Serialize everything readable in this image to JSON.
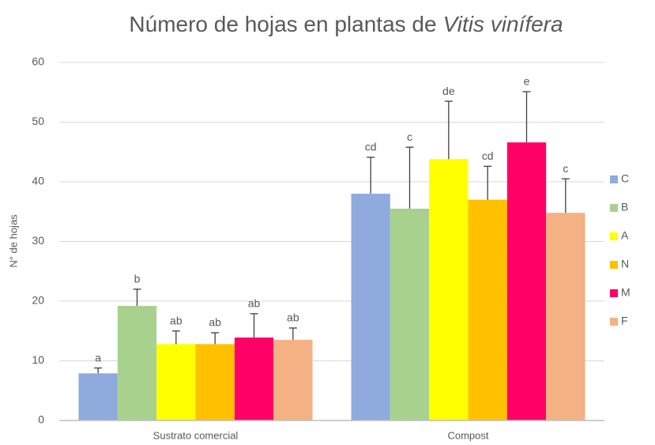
{
  "chart_data": {
    "type": "bar",
    "title": "Número de hojas en plantas de",
    "title_species": "Vitis vinífera",
    "y_label": "N° de hojas",
    "categories": [
      "Sustrato comercial",
      "Compost"
    ],
    "ylim": [
      0,
      60
    ],
    "yticks": [
      0,
      10,
      20,
      30,
      40,
      50,
      60
    ],
    "grid": true,
    "legend": "right",
    "series": [
      {
        "name": "C",
        "color": "#8faadc",
        "values": [
          7.9,
          38.0
        ],
        "errors": [
          0.9,
          6.1
        ],
        "letters": [
          "a",
          "cd"
        ]
      },
      {
        "name": "B",
        "color": "#a9d18e",
        "values": [
          19.2,
          35.5
        ],
        "errors": [
          2.8,
          10.3
        ],
        "letters": [
          "b",
          "c"
        ]
      },
      {
        "name": "A",
        "color": "#ffff00",
        "values": [
          12.8,
          43.8
        ],
        "errors": [
          2.2,
          9.7
        ],
        "letters": [
          "ab",
          "de"
        ]
      },
      {
        "name": "N",
        "color": "#ffc000",
        "values": [
          12.8,
          37.0
        ],
        "errors": [
          1.9,
          5.6
        ],
        "letters": [
          "ab",
          "cd"
        ]
      },
      {
        "name": "M",
        "color": "#ff0066",
        "values": [
          13.9,
          46.6
        ],
        "errors": [
          4.0,
          8.5
        ],
        "letters": [
          "ab",
          "e"
        ]
      },
      {
        "name": "F",
        "color": "#f4b183",
        "values": [
          13.5,
          34.8
        ],
        "errors": [
          2.0,
          5.7
        ],
        "letters": [
          "ab",
          "c"
        ]
      }
    ]
  }
}
